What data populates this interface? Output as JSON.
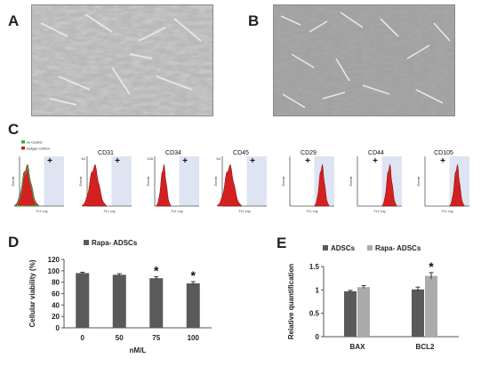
{
  "panels": {
    "a": {
      "letter": "A"
    },
    "b": {
      "letter": "B"
    },
    "c": {
      "letter": "C"
    },
    "d": {
      "letter": "D"
    },
    "e": {
      "letter": "E"
    }
  },
  "flow": {
    "legend": [
      "ve Control",
      "Isotype Control"
    ],
    "legend_colors": [
      "#2bb34a",
      "#d42020"
    ],
    "plus_mark": "+",
    "y_axis_label": "Events",
    "x_axis_label": "FL1 Log",
    "panels": [
      {
        "marker": "",
        "ymax": "",
        "peak": "low",
        "shape": "broad"
      },
      {
        "marker": "CD31",
        "ymax": "64",
        "peak": "low",
        "shape": "broad"
      },
      {
        "marker": "CD34",
        "ymax": "128",
        "peak": "low",
        "shape": "narrow"
      },
      {
        "marker": "CD45",
        "ymax": "64",
        "peak": "low",
        "shape": "broad"
      },
      {
        "marker": "CD29",
        "ymax": "",
        "peak": "high",
        "shape": "narrow"
      },
      {
        "marker": "CD44",
        "ymax": "",
        "peak": "high",
        "shape": "narrow"
      },
      {
        "marker": "CD105",
        "ymax": "",
        "peak": "high",
        "shape": "narrow"
      }
    ],
    "colors": {
      "histogram": "#d42020",
      "gate": "#dfe4f3"
    }
  },
  "chart_data": [
    {
      "type": "bar",
      "title": "",
      "legend": [
        "Rapa- ADSCs"
      ],
      "xlabel": "nM/L",
      "ylabel": "Cellular viability (%)",
      "ylim": [
        0,
        120
      ],
      "yticks": [
        "0",
        "20",
        "40",
        "60",
        "80",
        "100",
        "120"
      ],
      "categories": [
        "0",
        "50",
        "75",
        "100"
      ],
      "series": [
        {
          "name": "Rapa- ADSCs",
          "values": [
            96,
            93,
            87,
            78
          ],
          "errors": [
            1.5,
            2,
            2.5,
            3
          ],
          "color": "#5a5a5a"
        }
      ],
      "significance": [
        "",
        "",
        "*",
        "*"
      ],
      "grid": false,
      "legend_position": "top"
    },
    {
      "type": "bar",
      "title": "",
      "legend": [
        "ADSCs",
        "Rapa- ADSCs"
      ],
      "xlabel": "",
      "ylabel": "Relative quantification",
      "ylim": [
        0,
        1.5
      ],
      "yticks": [
        "0",
        "0.5",
        "1",
        "1.5"
      ],
      "categories": [
        "BAX",
        "BCL2"
      ],
      "series": [
        {
          "name": "ADSCs",
          "values": [
            0.97,
            1.01
          ],
          "errors": [
            0.02,
            0.05
          ],
          "color": "#5a5a5a"
        },
        {
          "name": "Rapa- ADSCs",
          "values": [
            1.06,
            1.3
          ],
          "errors": [
            0.03,
            0.07
          ],
          "color": "#ababab"
        }
      ],
      "significance": [
        [
          "",
          ""
        ],
        [
          "",
          "*"
        ]
      ],
      "grid": false,
      "legend_position": "top"
    }
  ]
}
